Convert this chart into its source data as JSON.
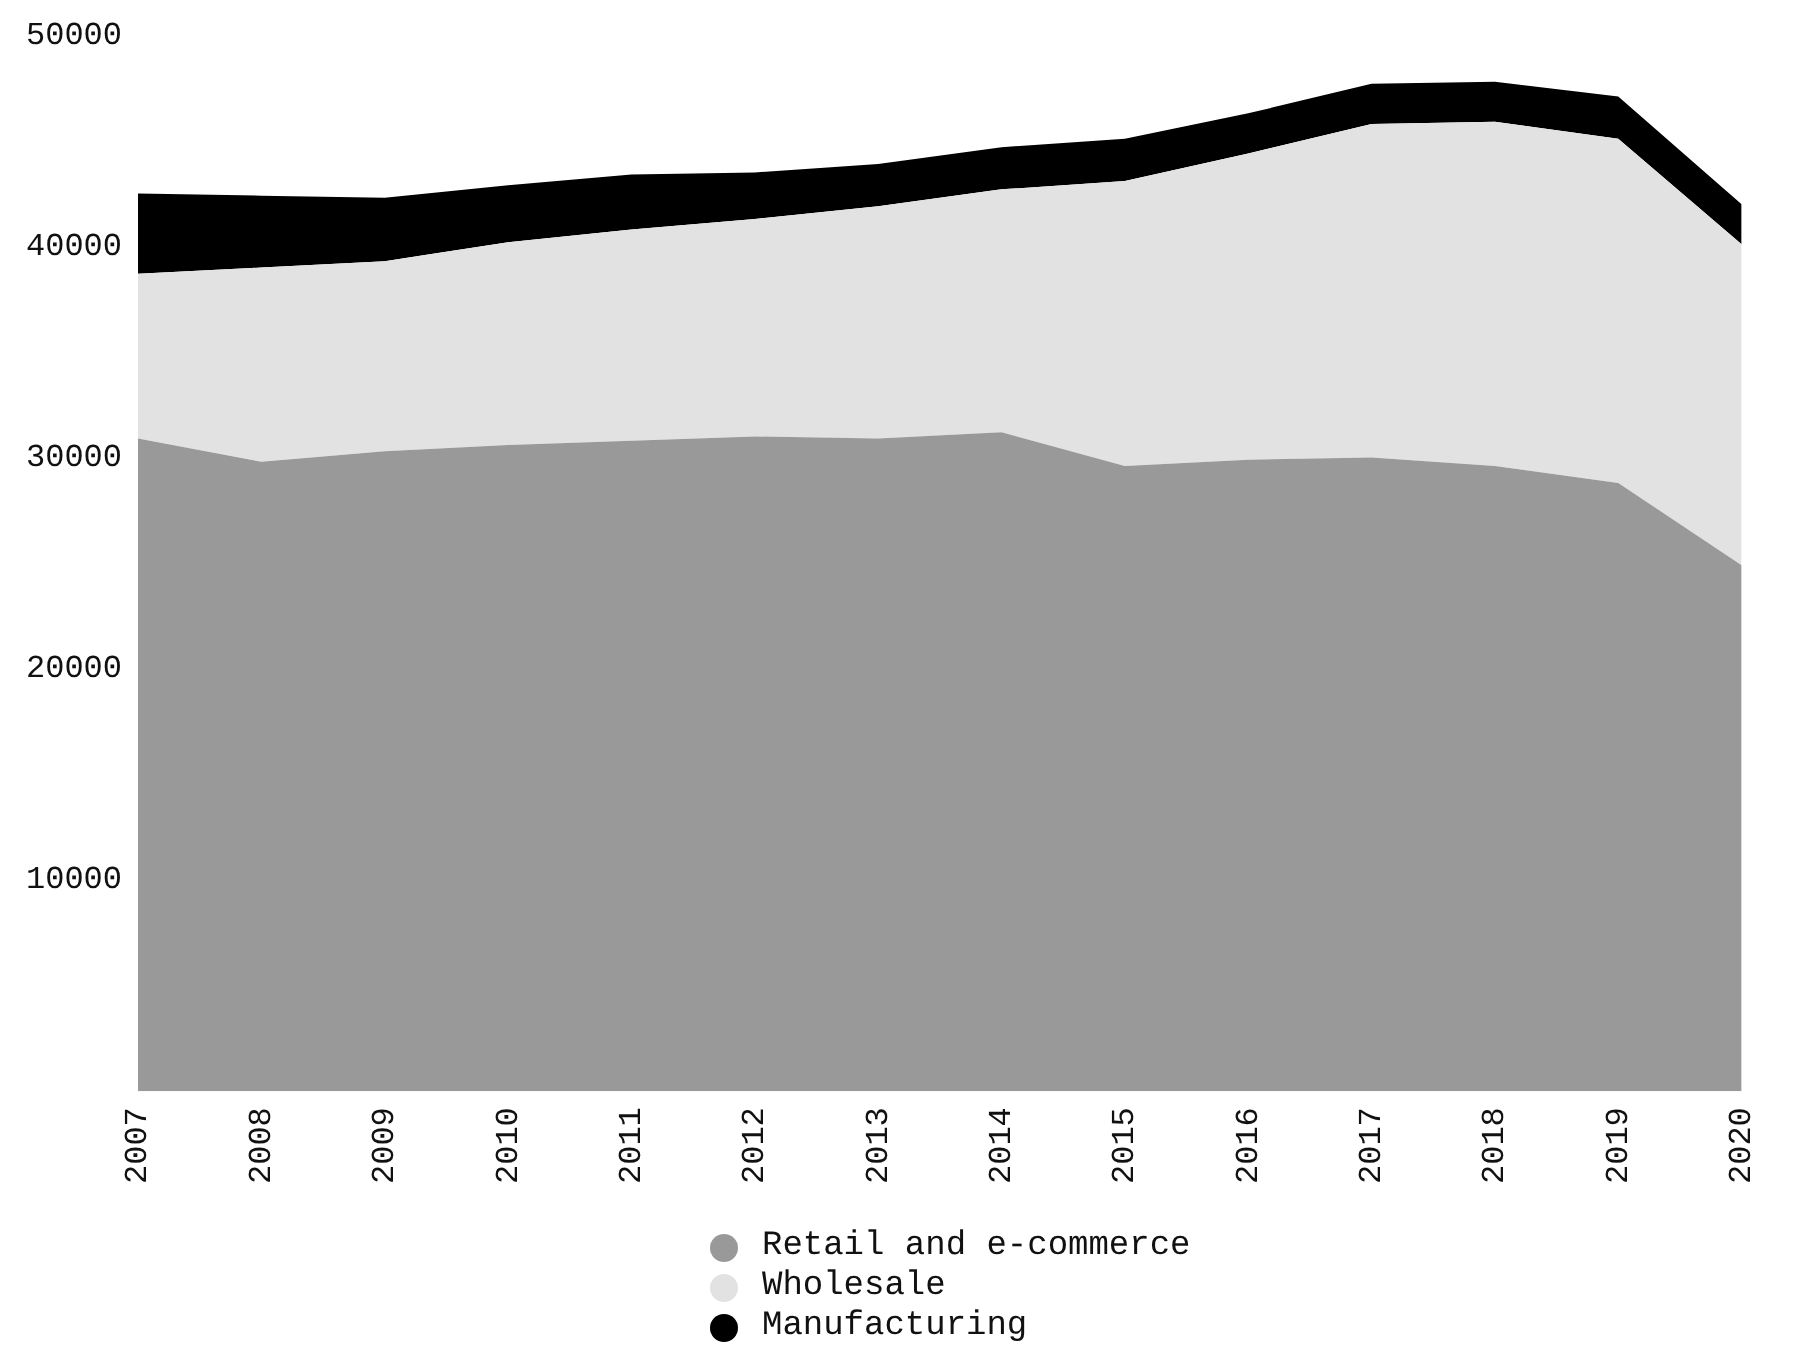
{
  "chart_data": {
    "type": "area",
    "stacked": true,
    "categories": [
      "2007",
      "2008",
      "2009",
      "2010",
      "2011",
      "2012",
      "2013",
      "2014",
      "2015",
      "2016",
      "2017",
      "2018",
      "2019",
      "2020"
    ],
    "series": [
      {
        "name": "Retail and e-commerce",
        "color": "#999999",
        "values": [
          30900,
          29800,
          30300,
          30600,
          30800,
          31000,
          30900,
          31200,
          29600,
          29900,
          30000,
          29600,
          28800,
          24900
        ]
      },
      {
        "name": "Wholesale",
        "color": "#e2e2e2",
        "values": [
          7800,
          9200,
          9000,
          9600,
          10000,
          10300,
          11000,
          11500,
          13500,
          14500,
          15800,
          16300,
          16300,
          15200
        ]
      },
      {
        "name": "Manufacturing",
        "color": "#000000",
        "values": [
          3800,
          3400,
          3000,
          2700,
          2600,
          2200,
          2000,
          2000,
          2000,
          1900,
          1900,
          1900,
          2000,
          1900
        ]
      }
    ],
    "ylim": [
      0,
      50000
    ],
    "yticks": [
      10000,
      20000,
      30000,
      40000,
      50000
    ],
    "grid": false,
    "legend": "bottom",
    "marker": "none"
  }
}
